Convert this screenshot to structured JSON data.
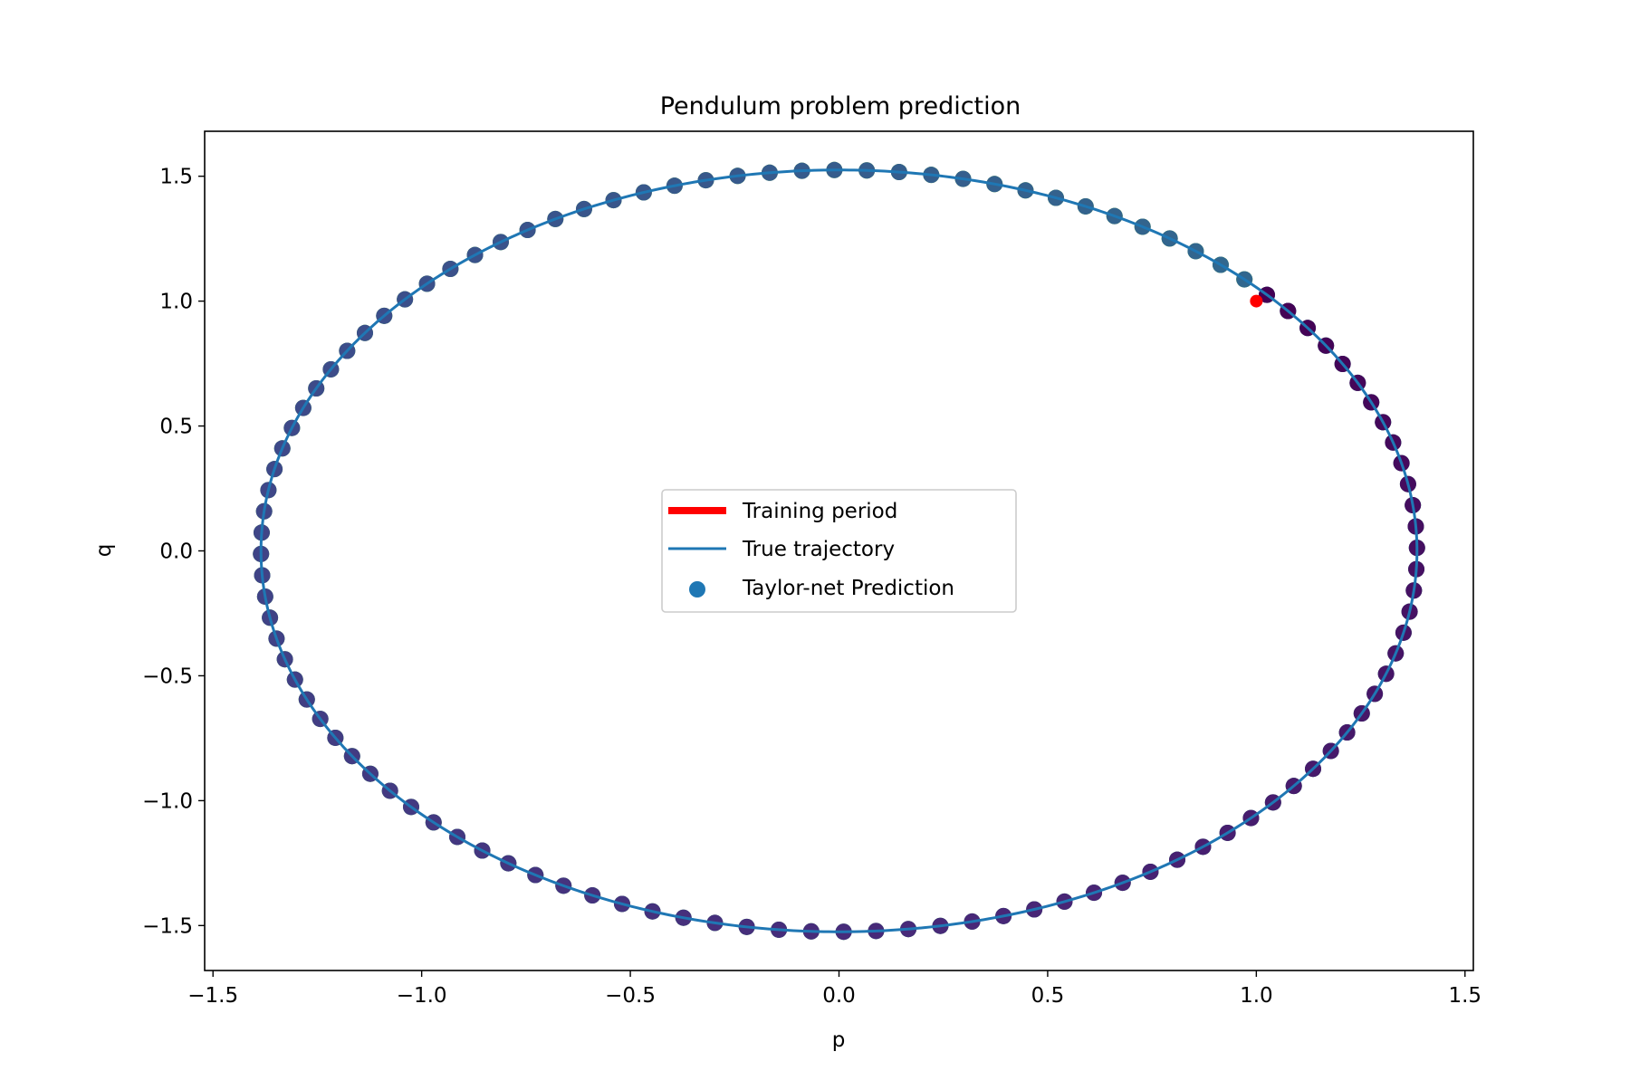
{
  "chart_data": {
    "type": "scatter",
    "title": "Pendulum problem prediction",
    "xlabel": "p",
    "ylabel": "q",
    "xlim": [
      -1.52,
      1.52
    ],
    "ylim": [
      -1.68,
      1.68
    ],
    "x_ticks": [
      -1.5,
      -1.0,
      -0.5,
      0.0,
      0.5,
      1.0,
      1.5
    ],
    "y_ticks": [
      -1.5,
      -1.0,
      -0.5,
      0.0,
      0.5,
      1.0,
      1.5
    ],
    "x_tick_labels": [
      "−1.5",
      "−1.0",
      "−0.5",
      "0.0",
      "0.5",
      "1.0",
      "1.5"
    ],
    "y_tick_labels": [
      "−1.5",
      "−1.0",
      "−0.5",
      "0.0",
      "0.5",
      "1.0",
      "1.5"
    ],
    "grid": false,
    "legend_position": "center",
    "colormap": "viridis",
    "series": [
      {
        "name": "Training period",
        "kind": "line",
        "color": "#ff0000",
        "points": [
          [
            1.0,
            1.0
          ],
          [
            1.01,
            0.995
          ]
        ]
      },
      {
        "name": "True trajectory",
        "kind": "line",
        "color": "#1f77b4",
        "shape": "closed-orbit",
        "p_amplitude": 1.385,
        "q_amplitude": 1.525,
        "p_center": 0.0,
        "q_center": 0.0
      },
      {
        "name": "Taylor-net Prediction",
        "kind": "scatter",
        "legend_marker_color": "#1f77b4",
        "start_point": [
          1.0,
          1.0
        ],
        "direction": "clockwise",
        "revolutions": 3,
        "points_per_revolution": 112,
        "color_by": "time"
      }
    ]
  }
}
